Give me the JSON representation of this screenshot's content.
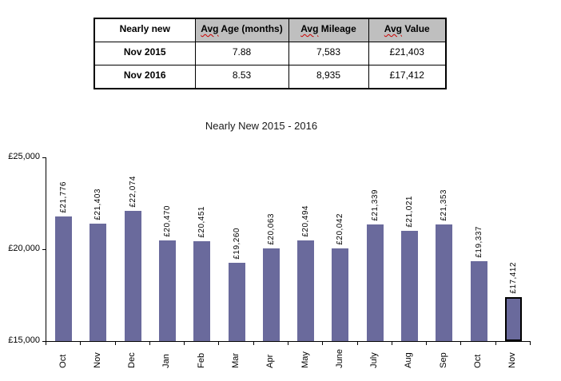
{
  "table": {
    "headers": [
      {
        "wavy": "",
        "label": "Nearly new"
      },
      {
        "wavy": "Avg",
        "label": " Age (months)"
      },
      {
        "wavy": "Avg",
        "label": " Mileage"
      },
      {
        "wavy": "Avg",
        "label": " Value"
      }
    ],
    "rows": [
      {
        "period": "Nov 2015",
        "avg_age_months": "7.88",
        "avg_mileage": "7,583",
        "avg_value": "£21,403"
      },
      {
        "period": "Nov 2016",
        "avg_age_months": "8.53",
        "avg_mileage": "8,935",
        "avg_value": "£17,412"
      }
    ]
  },
  "chart_data": {
    "type": "bar",
    "title": "Nearly New 2015 - 2016",
    "categories": [
      "Oct",
      "Nov",
      "Dec",
      "Jan",
      "Feb",
      "Mar",
      "Apr",
      "May",
      "June",
      "July",
      "Aug",
      "Sep",
      "Oct",
      "Nov"
    ],
    "values": [
      21776,
      21403,
      22074,
      20470,
      20451,
      19260,
      20063,
      20494,
      20042,
      21339,
      21021,
      21353,
      19337,
      17412
    ],
    "data_labels": [
      "£21,776",
      "£21,403",
      "£22,074",
      "£20,470",
      "£20,451",
      "£19,260",
      "£20,063",
      "£20,494",
      "£20,042",
      "£21,339",
      "£21,021",
      "£21,353",
      "£19,337",
      "£17,412"
    ],
    "ylim": [
      15000,
      25000
    ],
    "yticks": [
      {
        "value": 15000,
        "label": "£15,000"
      },
      {
        "value": 20000,
        "label": "£20,000"
      },
      {
        "value": 25000,
        "label": "£25,000"
      }
    ],
    "xlabel": "",
    "ylabel": "",
    "grid": false,
    "legend": false,
    "bar_color": "#6a6a9c",
    "highlight_index": 13,
    "highlight_border_color": "#000000"
  }
}
